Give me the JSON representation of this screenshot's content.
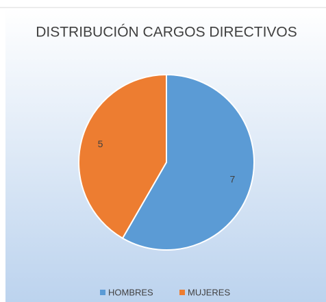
{
  "chart_data": {
    "type": "pie",
    "title": "DISTRIBUCIÓN CARGOS DIRECTIVOS",
    "categories": [
      "HOMBRES",
      "MUJERES"
    ],
    "values": [
      7,
      5
    ],
    "colors": [
      "#5b9bd5",
      "#ed7d31"
    ],
    "legend": "bottom"
  }
}
